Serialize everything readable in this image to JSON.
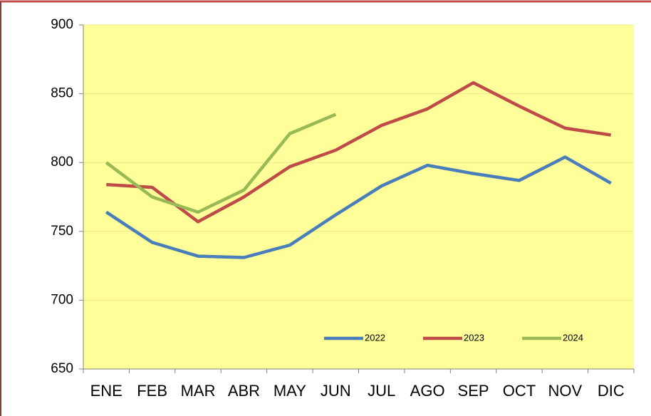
{
  "chart_data": {
    "type": "line",
    "categories": [
      "ENE",
      "FEB",
      "MAR",
      "ABR",
      "MAY",
      "JUN",
      "JUL",
      "AGO",
      "SEP",
      "OCT",
      "NOV",
      "DIC"
    ],
    "series": [
      {
        "name": "2022",
        "color": "#4a7ebb",
        "values": [
          764,
          742,
          732,
          731,
          740,
          762,
          783,
          798,
          792,
          787,
          804,
          785
        ]
      },
      {
        "name": "2023",
        "color": "#be4b48",
        "values": [
          784,
          782,
          757,
          775,
          797,
          809,
          827,
          839,
          858,
          841,
          825,
          820
        ]
      },
      {
        "name": "2024",
        "color": "#98b954",
        "values": [
          800,
          775,
          764,
          780,
          821,
          835,
          null,
          null,
          null,
          null,
          null,
          null
        ]
      }
    ],
    "ylim": [
      650,
      900
    ],
    "yticks": [
      650,
      700,
      750,
      800,
      850,
      900
    ],
    "grid": true,
    "legend": "lower right",
    "background": "#ffff99"
  }
}
